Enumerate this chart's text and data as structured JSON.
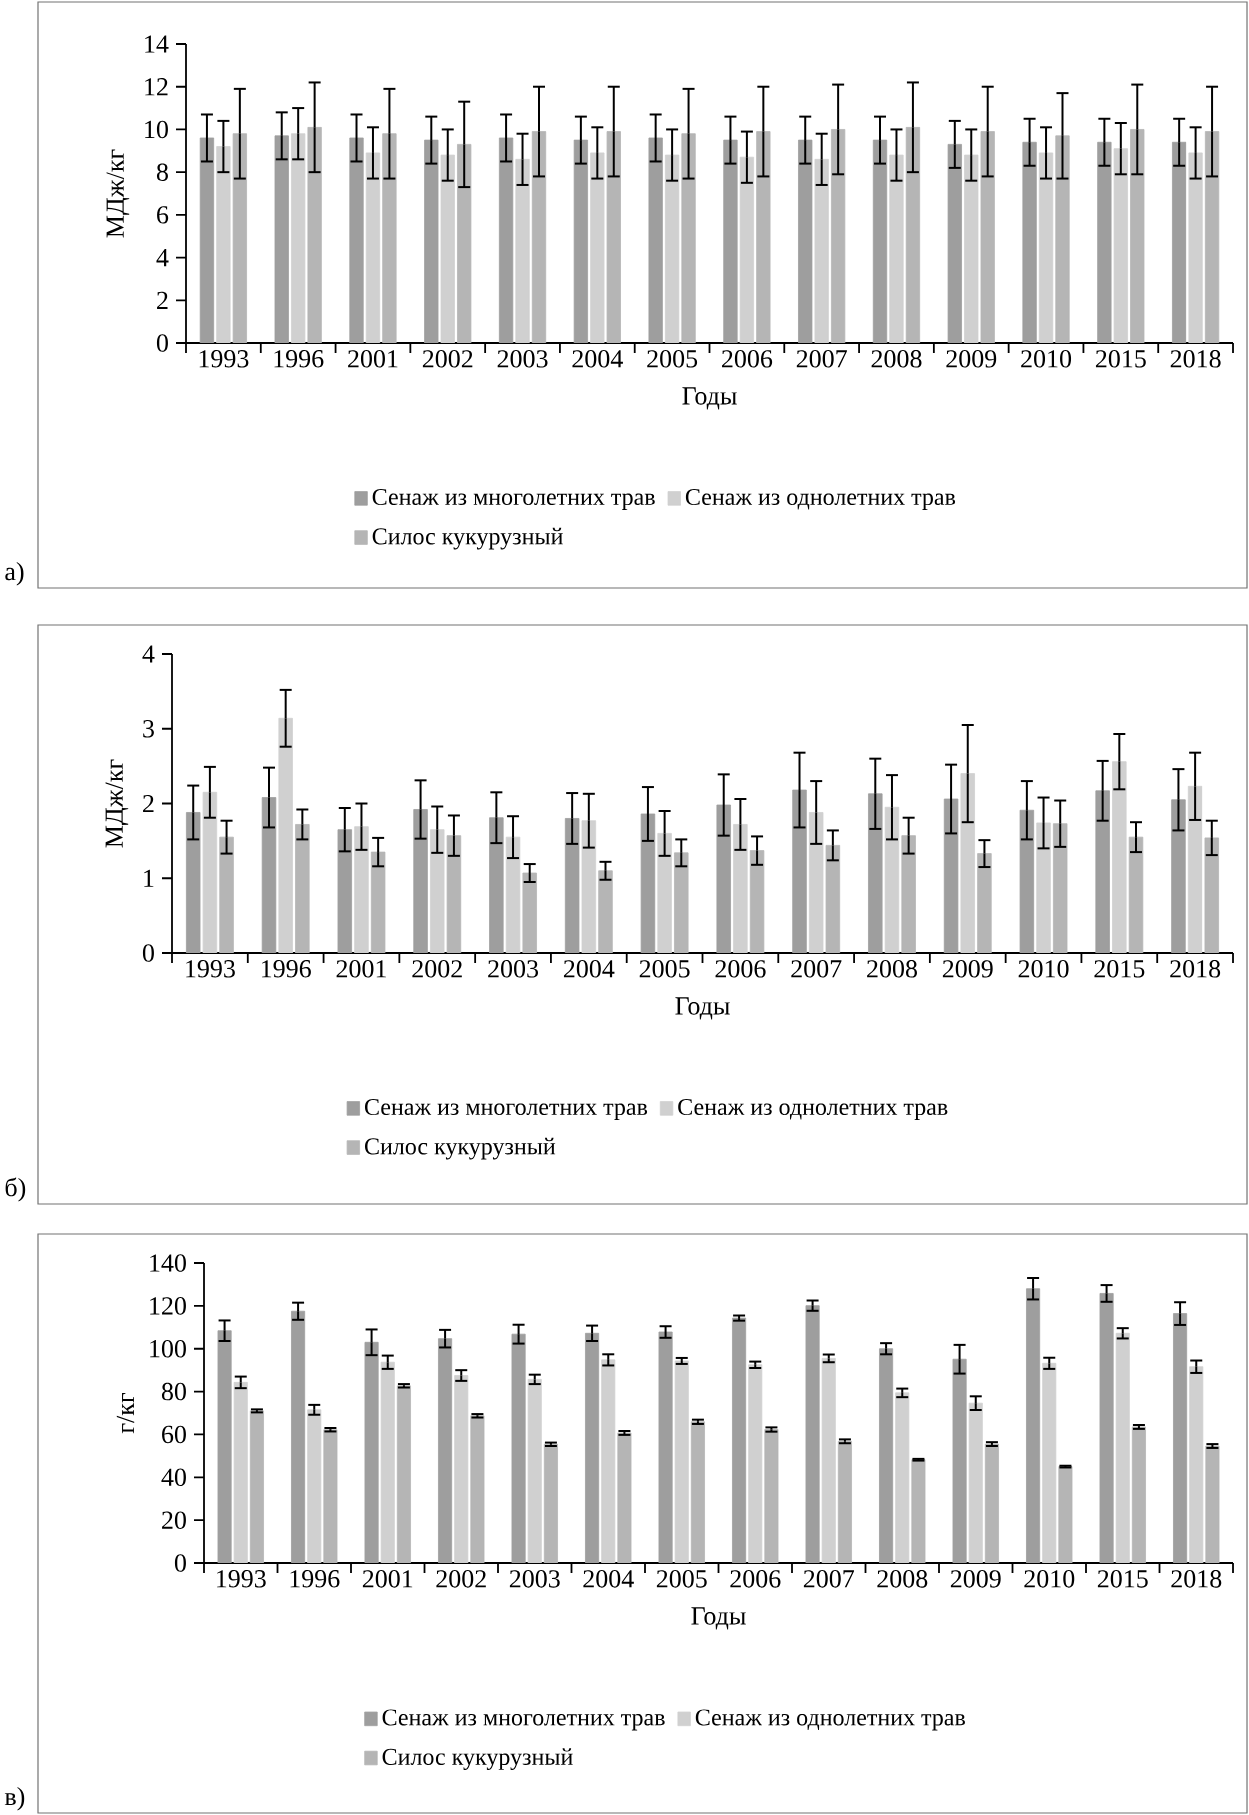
{
  "chart_data": [
    {
      "type": "bar",
      "xlabel": "Годы",
      "ylabel": "МДж/кг",
      "legend": "bottom",
      "annotations": [
        "а)"
      ],
      "categories": [
        "1993",
        "1996",
        "2001",
        "2002",
        "2003",
        "2004",
        "2005",
        "2006",
        "2007",
        "2008",
        "2009",
        "2010",
        "2015",
        "2018"
      ],
      "ylim": [
        0,
        14
      ],
      "yticks": [
        0,
        2,
        4,
        6,
        8,
        10,
        12,
        14
      ],
      "series": [
        {
          "name": "Сенаж из многолетних трав",
          "color": "#9e9e9e",
          "values": [
            9.6,
            9.7,
            9.6,
            9.5,
            9.6,
            9.5,
            9.6,
            9.5,
            9.5,
            9.5,
            9.3,
            9.4,
            9.4,
            9.4
          ],
          "errors": [
            1.1,
            1.1,
            1.1,
            1.1,
            1.1,
            1.1,
            1.1,
            1.1,
            1.1,
            1.1,
            1.1,
            1.1,
            1.1,
            1.1
          ]
        },
        {
          "name": "Сенаж из однолетних трав",
          "color": "#d0d0d0",
          "values": [
            9.2,
            9.8,
            8.9,
            8.8,
            8.6,
            8.9,
            8.8,
            8.7,
            8.6,
            8.8,
            8.8,
            8.9,
            9.1,
            8.9
          ],
          "errors": [
            1.2,
            1.2,
            1.2,
            1.2,
            1.2,
            1.2,
            1.2,
            1.2,
            1.2,
            1.2,
            1.2,
            1.2,
            1.2,
            1.2
          ]
        },
        {
          "name": "Силос кукурузный",
          "color": "#b5b5b5",
          "values": [
            9.8,
            10.1,
            9.8,
            9.3,
            9.9,
            9.9,
            9.8,
            9.9,
            10.0,
            10.1,
            9.9,
            9.7,
            10.0,
            9.9
          ],
          "errors": [
            2.1,
            2.1,
            2.1,
            2.0,
            2.1,
            2.1,
            2.1,
            2.1,
            2.1,
            2.1,
            2.1,
            2.0,
            2.1,
            2.1
          ]
        }
      ]
    },
    {
      "type": "bar",
      "xlabel": "Годы",
      "ylabel": "МДж/кг",
      "legend": "bottom",
      "annotations": [
        "б)"
      ],
      "categories": [
        "1993",
        "1996",
        "2001",
        "2002",
        "2003",
        "2004",
        "2005",
        "2006",
        "2007",
        "2008",
        "2009",
        "2010",
        "2015",
        "2018"
      ],
      "ylim": [
        0,
        4
      ],
      "yticks": [
        0,
        1,
        2,
        3,
        4
      ],
      "series": [
        {
          "name": "Сенаж из многолетних трав",
          "color": "#9e9e9e",
          "values": [
            1.88,
            2.08,
            1.65,
            1.92,
            1.81,
            1.8,
            1.86,
            1.98,
            2.18,
            2.13,
            2.06,
            1.91,
            2.17,
            2.05
          ],
          "errors": [
            0.36,
            0.4,
            0.29,
            0.39,
            0.34,
            0.34,
            0.36,
            0.41,
            0.5,
            0.47,
            0.46,
            0.39,
            0.4,
            0.41
          ]
        },
        {
          "name": "Сенаж из однолетних трав",
          "color": "#d0d0d0",
          "values": [
            2.15,
            3.14,
            1.69,
            1.65,
            1.55,
            1.77,
            1.6,
            1.72,
            1.88,
            1.95,
            2.4,
            1.74,
            2.56,
            2.23
          ],
          "errors": [
            0.34,
            0.38,
            0.31,
            0.31,
            0.28,
            0.36,
            0.3,
            0.34,
            0.42,
            0.43,
            0.65,
            0.34,
            0.37,
            0.45
          ]
        },
        {
          "name": "Силос кукурузный",
          "color": "#b5b5b5",
          "values": [
            1.55,
            1.72,
            1.35,
            1.57,
            1.07,
            1.1,
            1.34,
            1.37,
            1.44,
            1.57,
            1.33,
            1.73,
            1.55,
            1.54
          ],
          "errors": [
            0.22,
            0.2,
            0.19,
            0.27,
            0.12,
            0.12,
            0.18,
            0.19,
            0.2,
            0.24,
            0.18,
            0.31,
            0.2,
            0.23
          ]
        }
      ]
    },
    {
      "type": "bar",
      "xlabel": "Годы",
      "ylabel": "г/кг",
      "legend": "bottom",
      "annotations": [
        "в)"
      ],
      "categories": [
        "1993",
        "1996",
        "2001",
        "2002",
        "2003",
        "2004",
        "2005",
        "2006",
        "2007",
        "2008",
        "2009",
        "2010",
        "2015",
        "2018"
      ],
      "ylim": [
        0,
        140
      ],
      "yticks": [
        0,
        20,
        40,
        60,
        80,
        100,
        120,
        140
      ],
      "series": [
        {
          "name": "Сенаж из многолетних трав",
          "color": "#9e9e9e",
          "values": [
            108.4,
            117.5,
            103,
            104.7,
            106.8,
            107.2,
            107.8,
            114.3,
            120.1,
            100,
            95.1,
            128,
            125.8,
            116.4
          ],
          "errors": [
            4.8,
            4,
            6,
            4.1,
            4.4,
            3.6,
            2.7,
            1.2,
            2.4,
            2.6,
            6.7,
            5,
            3.9,
            5.3
          ]
        },
        {
          "name": "Сенаж из однолетних трав",
          "color": "#d0d0d0",
          "values": [
            84.3,
            71.5,
            93.7,
            87.5,
            85.7,
            94.8,
            94.3,
            92.5,
            95.5,
            79.4,
            74.6,
            93.2,
            107.2,
            91.6
          ],
          "errors": [
            2.7,
            2.3,
            3.1,
            2.5,
            2.2,
            2.6,
            1.4,
            1.5,
            1.8,
            2,
            3.2,
            2.6,
            2.4,
            2.9
          ]
        },
        {
          "name": "Силос кукурузный",
          "color": "#b5b5b5",
          "values": [
            71,
            62.2,
            82.7,
            68.7,
            55.4,
            60.7,
            65.9,
            62.3,
            56.8,
            48.2,
            55.5,
            45,
            63.5,
            54.6
          ],
          "errors": [
            0.7,
            0.8,
            0.8,
            0.8,
            0.8,
            0.9,
            1,
            1,
            0.9,
            0.4,
            0.9,
            0.4,
            0.9,
            0.9
          ]
        }
      ]
    }
  ]
}
